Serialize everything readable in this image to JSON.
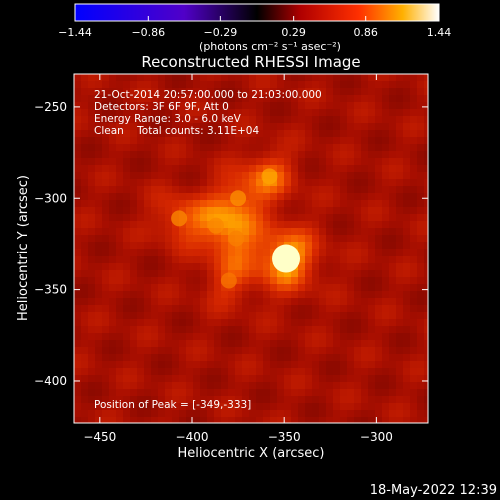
{
  "chart_data": {
    "type": "heatmap",
    "title": "Reconstructed RHESSI Image",
    "xlabel": "Heliocentric X (arcsec)",
    "ylabel": "Heliocentric Y (arcsec)",
    "xlim": [
      -464,
      -272
    ],
    "ylim": [
      -423,
      -232
    ],
    "x_ticks": [
      -450,
      -400,
      -350,
      -300
    ],
    "x_tick_labels": [
      "−450",
      "−400",
      "−350",
      "−300"
    ],
    "y_ticks": [
      -250,
      -300,
      -350,
      -400
    ],
    "y_tick_labels": [
      "−250",
      "−300",
      "−350",
      "−400"
    ],
    "colorbar": {
      "min": -1.44,
      "max": 1.44,
      "ticks": [
        -1.44,
        -0.86,
        -0.29,
        0.29,
        0.86,
        1.44
      ],
      "tick_labels": [
        "−1.44",
        "−0.86",
        "−0.29",
        "0.29",
        "0.86",
        "1.44"
      ],
      "unit_label": "(photons cm⁻² s⁻¹ asec⁻²)"
    },
    "annotations": {
      "line1": "21-Oct-2014 20:57:00.000 to 21:03:00.000",
      "line2": "Detectors: 3F 6F 9F, Att 0",
      "line3": "Energy Range: 3.0 - 6.0 keV",
      "line4": "Clean    Total counts: 3.11E+04",
      "peak": "Position of Peak = [-349,-333]"
    },
    "peak_position": [
      -349,
      -333
    ],
    "sources": [
      {
        "x": -349,
        "y": -333,
        "intensity": 1.44
      },
      {
        "x": -358,
        "y": -288,
        "intensity": 0.95
      },
      {
        "x": -375,
        "y": -300,
        "intensity": 0.85
      },
      {
        "x": -387,
        "y": -315,
        "intensity": 0.8
      },
      {
        "x": -407,
        "y": -311,
        "intensity": 0.82
      },
      {
        "x": -376,
        "y": -322,
        "intensity": 0.75
      },
      {
        "x": -380,
        "y": -345,
        "intensity": 0.7
      }
    ]
  },
  "footer": {
    "timestamp": "18-May-2022 12:39"
  }
}
